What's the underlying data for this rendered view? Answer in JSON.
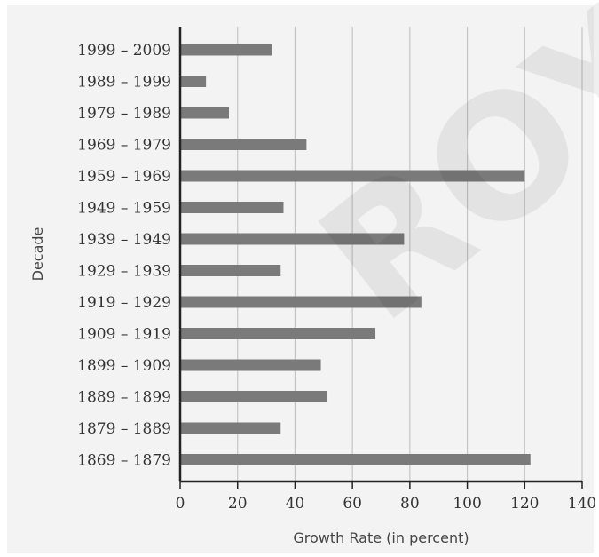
{
  "chart_data": {
    "type": "bar",
    "orientation": "horizontal",
    "categories": [
      "1999 – 2009",
      "1989 – 1999",
      "1979 – 1989",
      "1969 – 1979",
      "1959 – 1969",
      "1949 – 1959",
      "1939 – 1949",
      "1929 – 1939",
      "1919 – 1929",
      "1909 – 1919",
      "1899 – 1909",
      "1889 – 1899",
      "1879 – 1889",
      "1869 – 1879"
    ],
    "values": [
      32,
      9,
      17,
      44,
      120,
      36,
      78,
      35,
      84,
      68,
      49,
      51,
      35,
      122
    ],
    "xlabel": "Growth Rate (in percent)",
    "ylabel": "Decade",
    "xlim": [
      0,
      140
    ],
    "xticks": [
      0,
      20,
      40,
      60,
      80,
      100,
      120,
      140
    ],
    "grid": "vertical",
    "colors": {
      "bar": "#7a7a7a",
      "background": "#f3f3f3",
      "grid": "#c4c4c4",
      "axis": "#222222"
    }
  },
  "watermark": "ROY"
}
